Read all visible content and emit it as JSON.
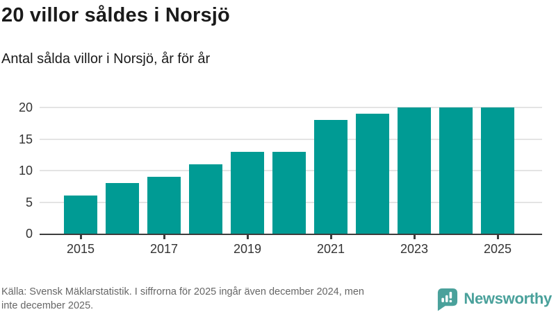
{
  "header": {
    "title": "20 villor såldes i Norsjö",
    "subtitle": "Antal sålda villor i Norsjö, år för år"
  },
  "footer": {
    "source_lines": [
      "Källa: Svensk Mäklarstatistik. I siffrorna för 2025 ingår även december 2024, men",
      "inte december 2025."
    ],
    "brand": {
      "name": "Newsworthy",
      "icon": "newsworthy-speech-bubble-bar-chart-icon"
    }
  },
  "colors": {
    "bar": "#009B94",
    "axis": "#3C3C3C",
    "grid": "#E4E4E4",
    "title_text": "#1A1A1A",
    "footer_text": "#666666",
    "brand": "#4AA19B"
  },
  "chart_data": {
    "type": "bar",
    "title": "20 villor såldes i Norsjö",
    "subtitle": "Antal sålda villor i Norsjö, år för år",
    "categories": [
      2015,
      2016,
      2017,
      2018,
      2019,
      2020,
      2021,
      2022,
      2023,
      2024,
      2025
    ],
    "values": [
      6,
      8,
      9,
      11,
      13,
      13,
      18,
      19,
      20,
      20,
      20
    ],
    "xlabel": "",
    "ylabel": "",
    "ylim": [
      0,
      20
    ],
    "yticks": [
      0,
      5,
      10,
      15,
      20
    ],
    "xticks": [
      2015,
      2017,
      2019,
      2021,
      2023,
      2025
    ],
    "grid": true,
    "legend": false,
    "bar_color": "#009B94"
  }
}
